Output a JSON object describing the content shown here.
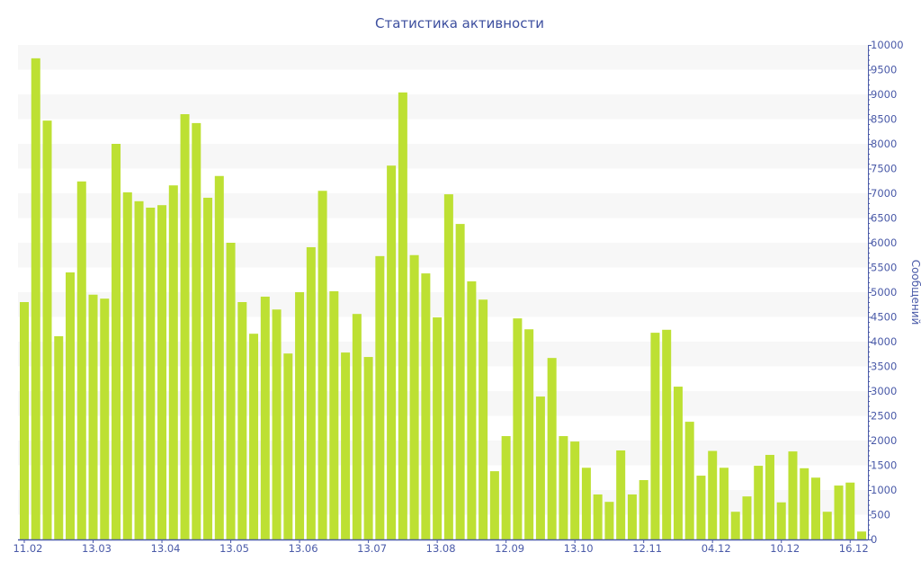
{
  "chart_data": {
    "type": "bar",
    "title": "Статистика активности",
    "xlabel": "",
    "ylabel": "Сообщений",
    "ylim": [
      0,
      10000
    ],
    "y_axis_position": "right",
    "y_ticks": [
      0,
      500,
      1000,
      1500,
      2000,
      2500,
      3000,
      3500,
      4000,
      4500,
      5000,
      5500,
      6000,
      6500,
      7000,
      7500,
      8000,
      8500,
      9000,
      9500,
      10000
    ],
    "x_tick_labels": [
      {
        "index": 0,
        "label": "11.02"
      },
      {
        "index": 6,
        "label": "13.03"
      },
      {
        "index": 12,
        "label": "13.04"
      },
      {
        "index": 18,
        "label": "13.05"
      },
      {
        "index": 24,
        "label": "13.06"
      },
      {
        "index": 30,
        "label": "13.07"
      },
      {
        "index": 36,
        "label": "13.08"
      },
      {
        "index": 42,
        "label": "12.09"
      },
      {
        "index": 48,
        "label": "13.10"
      },
      {
        "index": 54,
        "label": "12.11"
      },
      {
        "index": 60,
        "label": "04.12"
      },
      {
        "index": 66,
        "label": "10.12"
      },
      {
        "index": 72,
        "label": "16.12"
      }
    ],
    "values": [
      4800,
      9730,
      8470,
      4110,
      5400,
      7240,
      4950,
      4870,
      8000,
      7020,
      6840,
      6710,
      6760,
      7160,
      8600,
      8420,
      6910,
      7350,
      6000,
      4800,
      4160,
      4910,
      4650,
      3760,
      5000,
      5910,
      7050,
      5020,
      3780,
      4560,
      3690,
      5730,
      7560,
      9040,
      5750,
      5380,
      4490,
      6980,
      6380,
      5220,
      4850,
      1380,
      2090,
      4470,
      4250,
      2890,
      3670,
      2090,
      1980,
      1450,
      910,
      760,
      1800,
      910,
      1200,
      4180,
      4240,
      3090,
      2380,
      1290,
      1790,
      1450,
      560,
      870,
      1490,
      1710,
      750,
      1780,
      1440,
      1250,
      560,
      1090,
      1150,
      160
    ],
    "grid": "alternating horizontal bands",
    "legend": "none",
    "colors": {
      "bar": "#bde033",
      "axis": "#4a5aa8",
      "title": "#3d4f9f",
      "band": "#f7f7f7"
    }
  }
}
